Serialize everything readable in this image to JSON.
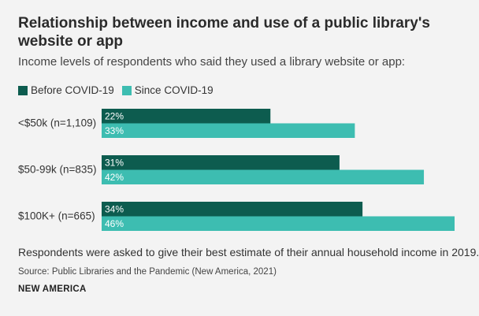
{
  "chart_data": {
    "type": "bar",
    "orientation": "horizontal",
    "title": "Relationship between income and use of a public library's website or app",
    "subtitle": "Income levels of respondents who said they used a library website or app:",
    "categories": [
      "<$50k (n=1,109)",
      "$50-99k (n=835)",
      "$100K+ (n=665)"
    ],
    "series": [
      {
        "name": "Before COVID-19",
        "values": [
          22,
          31,
          34
        ],
        "labels": [
          "22%",
          "31%",
          "34%"
        ],
        "color": "#0d5c4f"
      },
      {
        "name": "Since COVID-19",
        "values": [
          33,
          42,
          46
        ],
        "labels": [
          "33%",
          "42%",
          "46%"
        ],
        "color": "#3dbdb1"
      }
    ],
    "xlim": [
      0,
      46
    ],
    "grid": false,
    "legend": "top-left",
    "note": "Respondents were asked to give their best estimate of their annual household income in 2019.",
    "source": "Source: Public Libraries and the Pandemic (New America, 2021)",
    "brand": "NEW AMERICA"
  }
}
